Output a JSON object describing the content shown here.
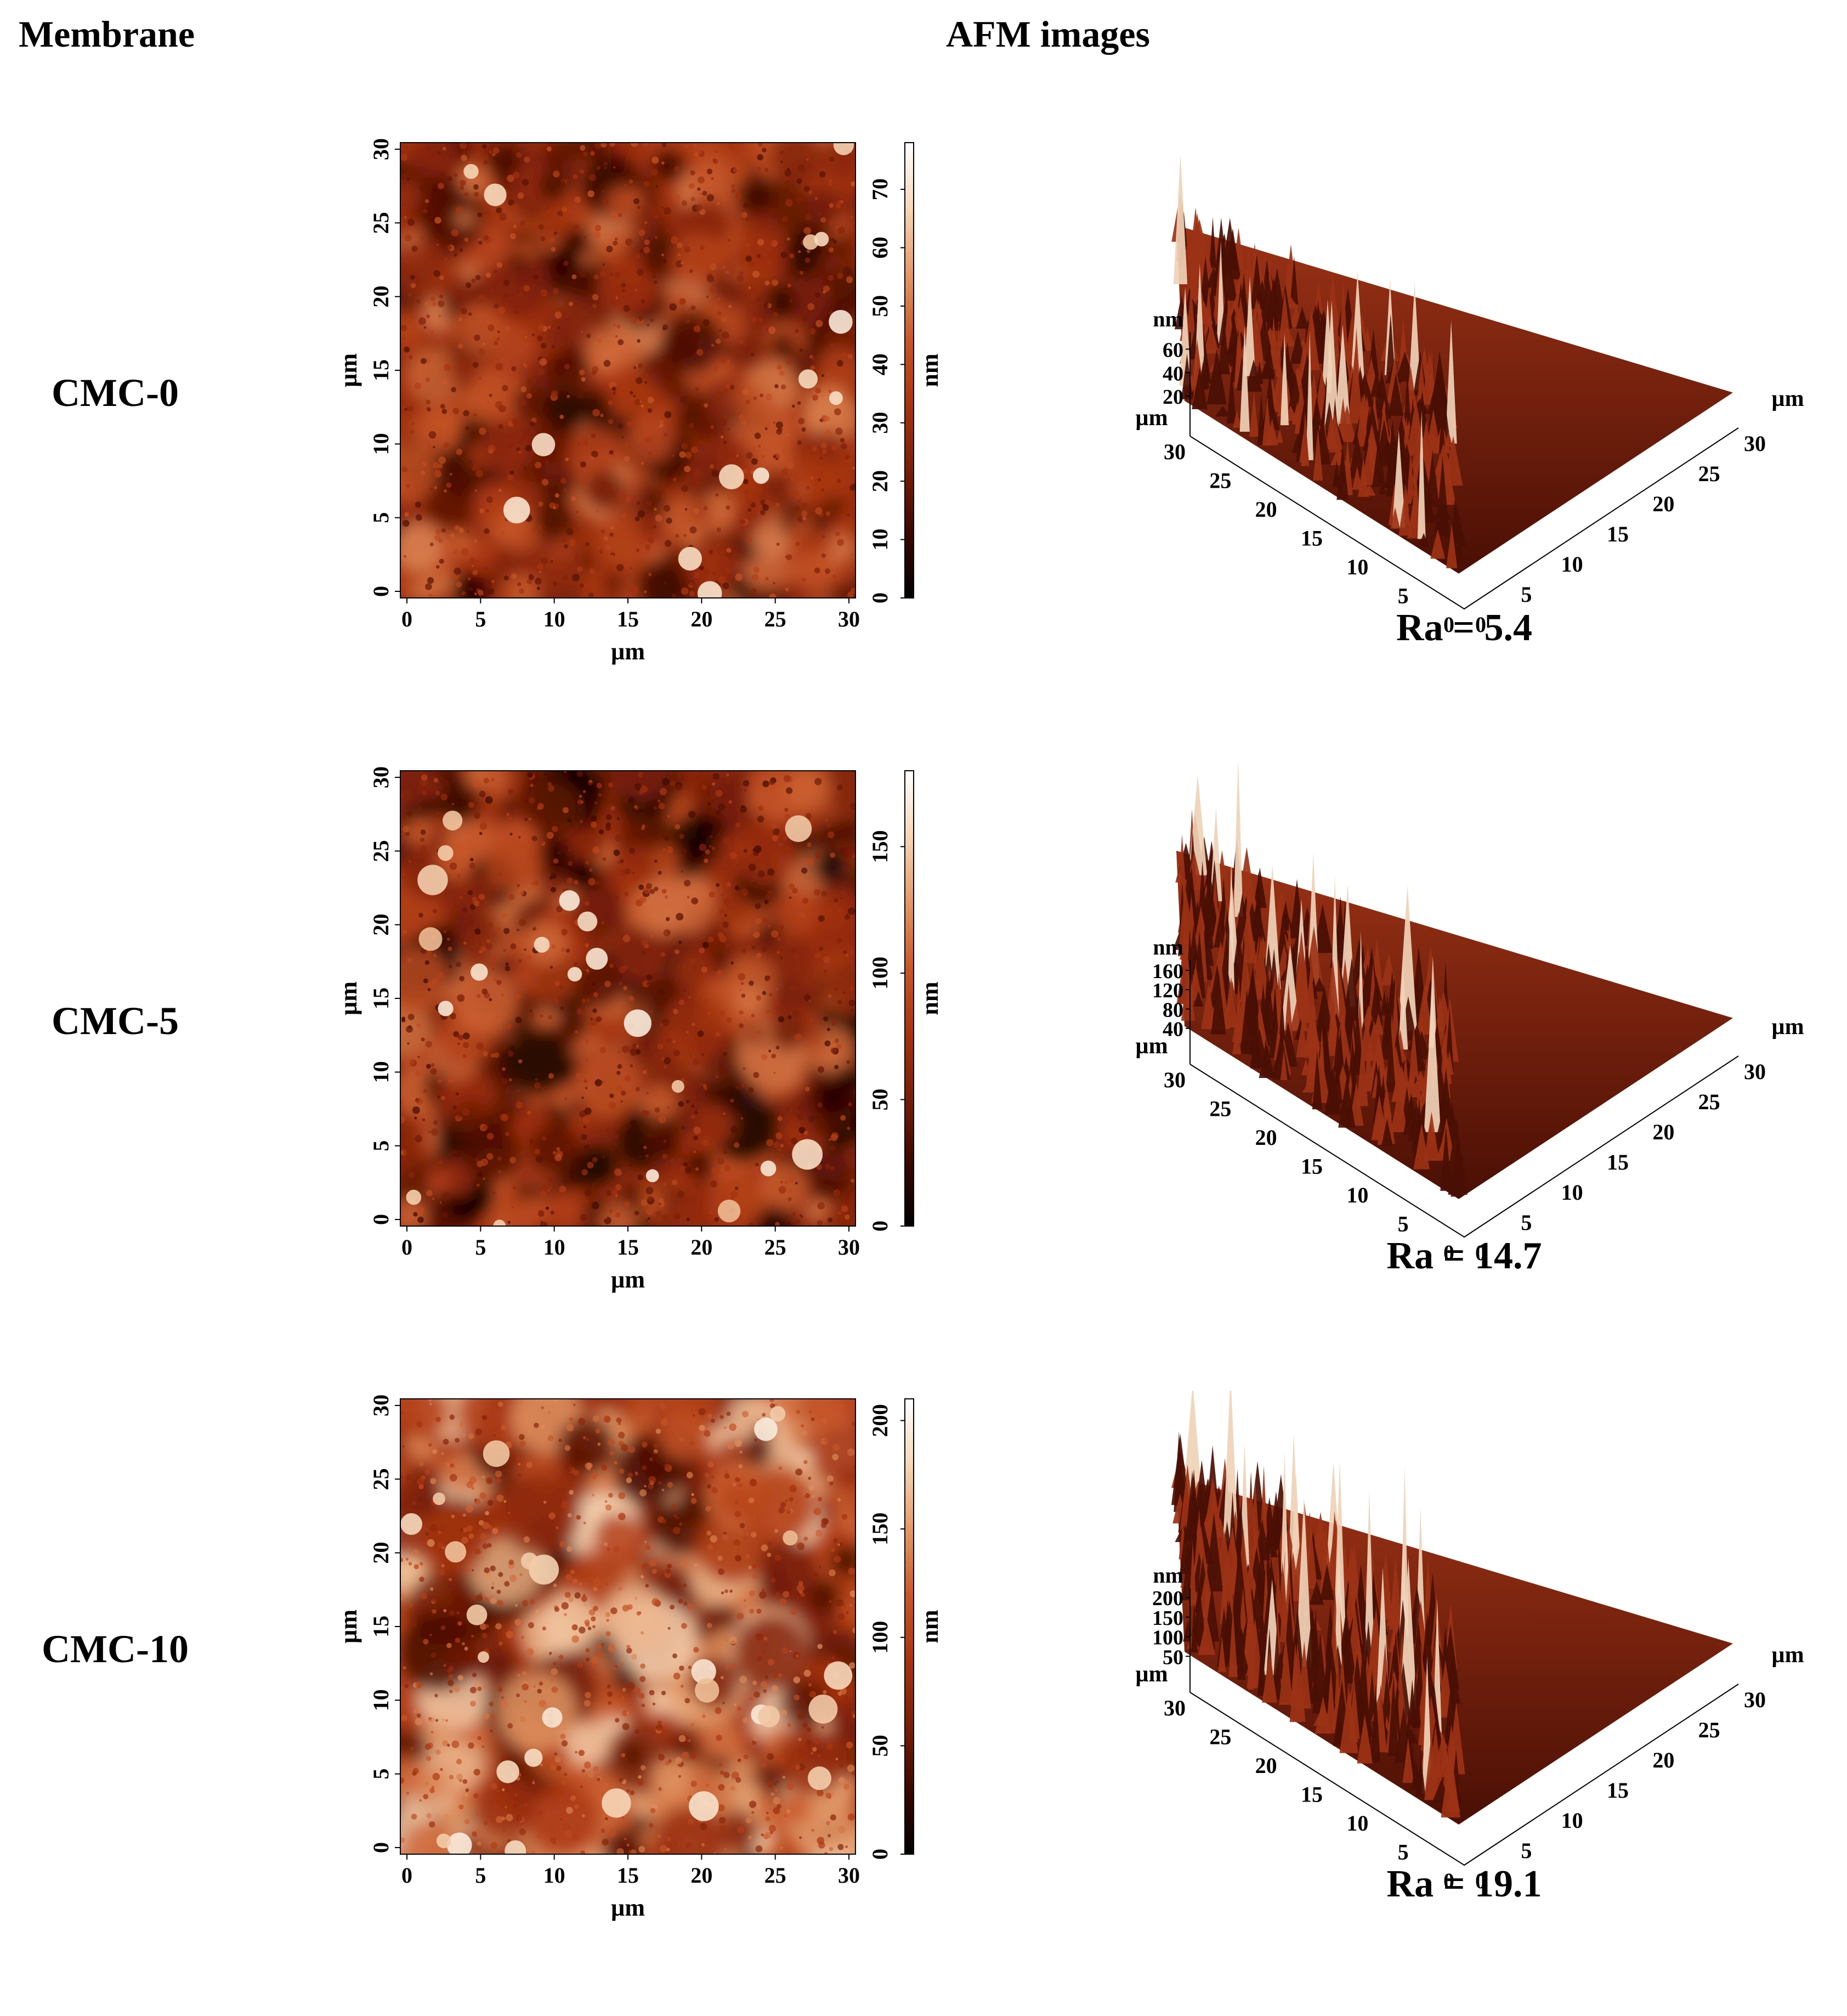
{
  "header": {
    "membrane_label": "Membrane",
    "afm_label": "AFM images"
  },
  "colors": {
    "colormap": [
      "#000000",
      "#3b0800",
      "#7a1f08",
      "#a83410",
      "#c8582a",
      "#e39a68",
      "#f6d7b8",
      "#ffffff"
    ],
    "surface_dark": "#4a0f04",
    "surface_mid": "#9b3216",
    "surface_light": "#f0d2b8"
  },
  "rows": [
    {
      "name": "CMC-0",
      "ra": "Ra = 5.4",
      "height_unit": "nm",
      "lateral_unit": "µm",
      "lateral_ticks": [
        "0",
        "5",
        "10",
        "15",
        "20",
        "25",
        "30"
      ],
      "colorbar_ticks": [
        "0",
        "10",
        "20",
        "30",
        "40",
        "50",
        "60",
        "70"
      ],
      "colorbar_max": 78,
      "z_ticks": [
        "20",
        "40",
        "60"
      ],
      "z_axis_max": 70,
      "brightness": 0.38,
      "roughness": 0.35
    },
    {
      "name": "CMC-5",
      "ra": "Ra = 14.7",
      "height_unit": "nm",
      "lateral_unit": "µm",
      "lateral_ticks": [
        "0",
        "5",
        "10",
        "15",
        "20",
        "25",
        "30"
      ],
      "colorbar_ticks": [
        "0",
        "50",
        "100",
        "150"
      ],
      "colorbar_max": 180,
      "z_ticks": [
        "40",
        "80",
        "120",
        "160"
      ],
      "z_axis_max": 170,
      "brightness": 0.33,
      "roughness": 0.55
    },
    {
      "name": "CMC-10",
      "ra": "Ra = 19.1",
      "height_unit": "nm",
      "lateral_unit": "µm",
      "lateral_ticks": [
        "0",
        "5",
        "10",
        "15",
        "20",
        "25",
        "30"
      ],
      "colorbar_ticks": [
        "0",
        "50",
        "100",
        "150",
        "200"
      ],
      "colorbar_max": 210,
      "z_ticks": [
        "50",
        "100",
        "150",
        "200"
      ],
      "z_axis_max": 210,
      "brightness": 0.5,
      "roughness": 0.75
    }
  ]
}
